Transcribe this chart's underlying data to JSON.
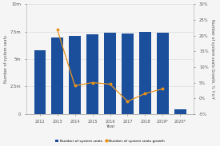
{
  "years": [
    "2012",
    "2013",
    "2014",
    "2015",
    "2016",
    "2017",
    "2018",
    "2019*",
    "2020*"
  ],
  "seats": [
    5.8,
    7.0,
    7.1,
    7.25,
    7.4,
    7.35,
    7.45,
    7.42,
    0.4
  ],
  "growth": [
    null,
    22.0,
    4.0,
    5.0,
    4.5,
    -1.0,
    1.5,
    3.0,
    null
  ],
  "bar_color": "#1b4f9c",
  "line_color": "#e8921a",
  "ylim_left": [
    0,
    10
  ],
  "ylim_right": [
    -5,
    30
  ],
  "yticks_left": [
    0,
    2.5,
    5.0,
    7.5,
    10.0
  ],
  "ytick_labels_left": [
    "0",
    "2.5m",
    "5m",
    "7.5m",
    "10m"
  ],
  "yticks_right": [
    -5,
    0,
    5,
    10,
    15,
    20,
    25,
    30
  ],
  "ytick_labels_right": [
    "-5%",
    "0%",
    "5%",
    "10%",
    "15%",
    "20%",
    "25%",
    "30%"
  ],
  "xlabel": "Year",
  "ylabel_left": "Number of system seats",
  "ylabel_right": "Number of system seats Growth, % Y-o-Y",
  "legend_bar": "Number of system seats",
  "legend_line": "Number of system seats growth",
  "bg_color": "#f5f5f5",
  "grid_color": "#d8d8d8"
}
